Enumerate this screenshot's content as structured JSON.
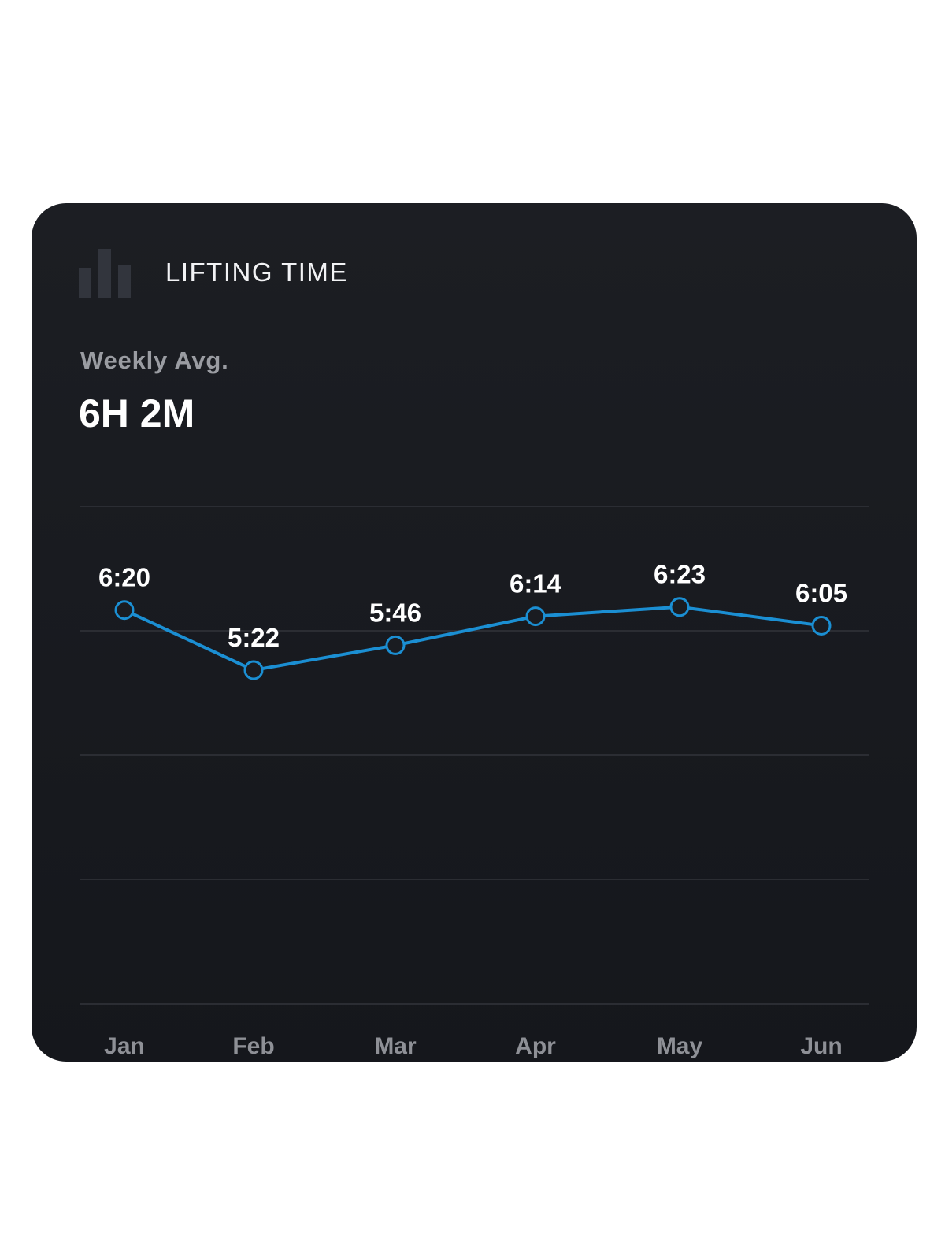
{
  "card": {
    "title": "LIFTING TIME",
    "icon": "bar-chart-icon",
    "stat_label": "Weekly Avg.",
    "stat_value": "6H 2M"
  },
  "colors": {
    "card_background": "#1a1c21",
    "line": "#1b8fd3",
    "gridline": "#2b2d33",
    "label_text": "#ffffff",
    "axis_text": "#8e9096"
  },
  "chart_data": {
    "type": "line",
    "title": "LIFTING TIME",
    "categories": [
      "Jan",
      "Feb",
      "Mar",
      "Apr",
      "May",
      "Jun"
    ],
    "values": [
      6.333,
      5.367,
      5.767,
      6.233,
      6.383,
      6.083
    ],
    "data_labels": [
      "6:20",
      "5:22",
      "5:46",
      "6:14",
      "6:23",
      "6:05"
    ],
    "ylim": [
      0,
      8
    ],
    "y_gridlines": [
      0,
      2,
      4,
      6,
      8
    ],
    "grid": true,
    "xlabel": "",
    "ylabel": ""
  }
}
